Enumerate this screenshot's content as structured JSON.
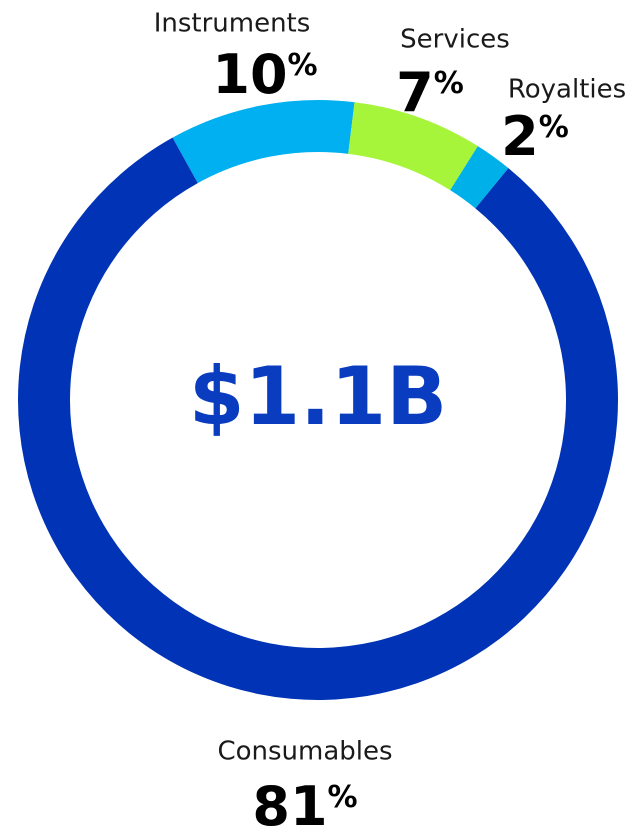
{
  "chart_data": {
    "type": "donut",
    "center_label": "$1.1B",
    "categories": [
      "Instruments",
      "Services",
      "Royalties",
      "Consumables"
    ],
    "values": [
      10,
      7,
      2,
      81
    ],
    "value_labels": [
      "10%",
      "7%",
      "2%",
      "81%"
    ],
    "colors": [
      "#00b0f0",
      "#a6f53a",
      "#00b0e8",
      "#0033b5"
    ]
  }
}
